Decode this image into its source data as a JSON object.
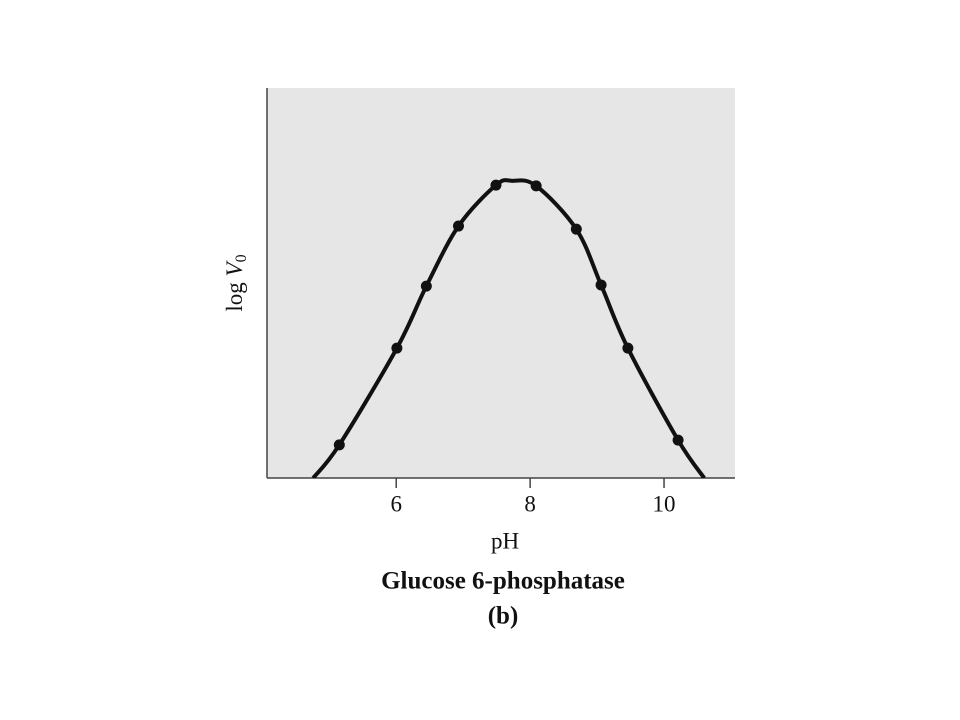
{
  "chart_data": {
    "type": "scatter",
    "title": "Glucose 6-phosphatase",
    "subtitle": "(b)",
    "x_label": "pH",
    "y_label": {
      "text": "log ",
      "var": "V",
      "sub": "0"
    },
    "x": [
      5.15,
      6.01,
      6.45,
      6.93,
      7.49,
      8.09,
      8.69,
      9.06,
      9.46,
      10.21
    ],
    "values": [
      8.5,
      33.3,
      49.2,
      64.6,
      75.1,
      74.9,
      63.8,
      49.5,
      33.3,
      9.7
    ],
    "curve": {
      "x": [
        4.76,
        5.15,
        6.01,
        6.45,
        6.93,
        7.49,
        7.73,
        8.09,
        8.69,
        9.06,
        9.46,
        10.21,
        10.6
      ],
      "values": [
        0,
        8.5,
        33.3,
        49.2,
        64.6,
        75.1,
        76.2,
        74.9,
        63.8,
        49.5,
        33.3,
        9.7,
        0
      ]
    },
    "color": "#111111",
    "background": "#e6e6e6",
    "xlim": [
      4.07,
      11.06
    ],
    "ylim": [
      0,
      100
    ],
    "xticks": [
      6,
      8,
      10
    ]
  }
}
